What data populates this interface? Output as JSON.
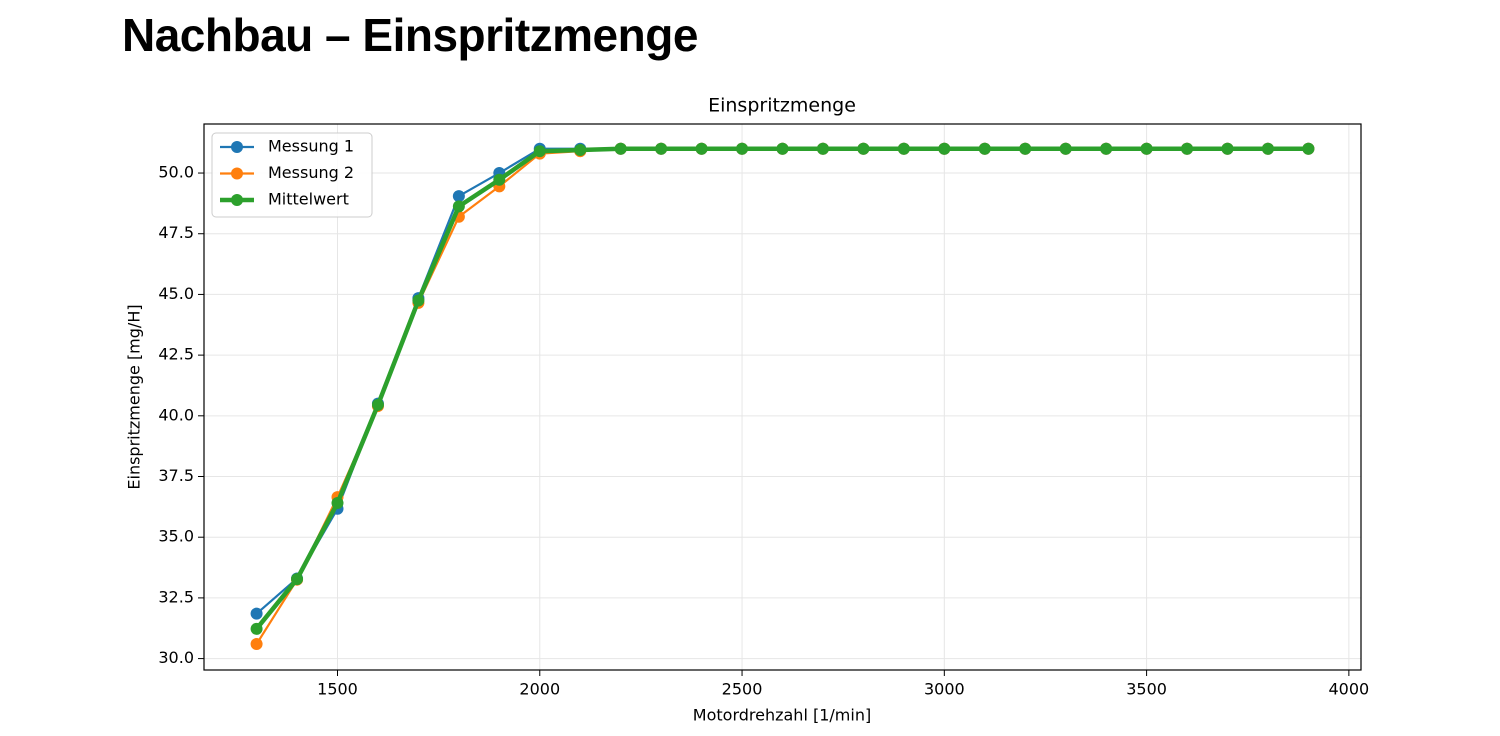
{
  "header": {
    "title": "Nachbau – Einspritzmenge"
  },
  "chart_data": {
    "type": "line",
    "title": "Einspritzmenge",
    "xlabel": "Motordrehzahl [1/min]",
    "ylabel": "Einspritzmenge [mg/H]",
    "x": [
      1300,
      1400,
      1500,
      1600,
      1700,
      1800,
      1900,
      2000,
      2100,
      2200,
      2300,
      2400,
      2500,
      2600,
      2700,
      2800,
      2900,
      3000,
      3100,
      3200,
      3300,
      3400,
      3500,
      3600,
      3700,
      3800,
      3900
    ],
    "series": [
      {
        "name": "Messung 1",
        "color": "#1f77b4",
        "values": [
          31.85,
          33.3,
          36.17,
          40.5,
          44.85,
          49.05,
          50.0,
          51.0,
          51.0,
          51.0,
          51.0,
          51.0,
          51.0,
          51.0,
          51.0,
          51.0,
          51.0,
          51.0,
          51.0,
          51.0,
          51.0,
          51.0,
          51.0,
          51.0,
          51.0,
          51.0,
          51.0
        ]
      },
      {
        "name": "Messung 2",
        "color": "#ff7f0e",
        "values": [
          30.6,
          33.25,
          36.65,
          40.4,
          44.65,
          48.2,
          49.45,
          50.8,
          50.9,
          51.0,
          51.0,
          51.0,
          51.0,
          51.0,
          51.0,
          51.0,
          51.0,
          51.0,
          51.0,
          51.0,
          51.0,
          51.0,
          51.0,
          51.0,
          51.0,
          51.0,
          51.0
        ]
      },
      {
        "name": "Mittelwert",
        "color": "#2ca02c",
        "values": [
          31.225,
          33.275,
          36.41,
          40.45,
          44.75,
          48.625,
          49.725,
          50.9,
          50.95,
          51.0,
          51.0,
          51.0,
          51.0,
          51.0,
          51.0,
          51.0,
          51.0,
          51.0,
          51.0,
          51.0,
          51.0,
          51.0,
          51.0,
          51.0,
          51.0,
          51.0,
          51.0
        ]
      }
    ],
    "xlim": [
      1170,
      4030
    ],
    "xticks": [
      1500,
      2000,
      2500,
      3000,
      3500,
      4000
    ],
    "ylim": [
      29.53,
      52.02
    ],
    "yticks": [
      {
        "value": 30,
        "label": "30.0"
      },
      {
        "value": 32.5,
        "label": "32.5"
      },
      {
        "value": 35,
        "label": "35.0"
      },
      {
        "value": 37.5,
        "label": "37.5"
      },
      {
        "value": 40,
        "label": "40.0"
      },
      {
        "value": 42.5,
        "label": "42.5"
      },
      {
        "value": 45,
        "label": "45.0"
      },
      {
        "value": 47.5,
        "label": "47.5"
      },
      {
        "value": 50,
        "label": "50.0"
      }
    ],
    "grid": true,
    "legend": "upper-left"
  }
}
